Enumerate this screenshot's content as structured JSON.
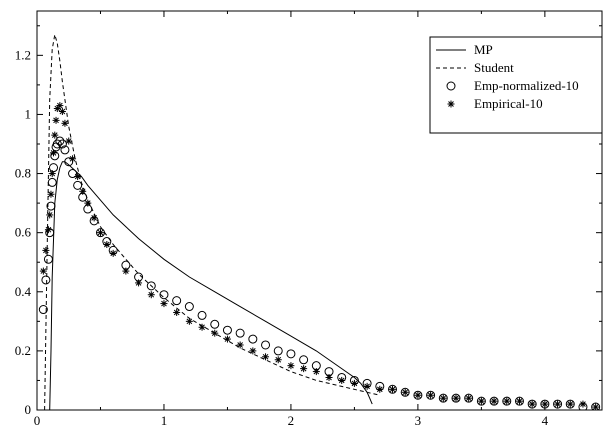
{
  "chart_data": {
    "type": "line",
    "title": "",
    "xlabel": "",
    "ylabel": "",
    "xlim": [
      0,
      4.45
    ],
    "ylim": [
      0,
      1.35
    ],
    "x_ticks": [
      0,
      1,
      2,
      3,
      4
    ],
    "y_ticks": [
      0,
      0.2,
      0.4,
      0.6,
      0.8,
      1,
      1.2
    ],
    "x_tick_labels": [
      "0",
      "1",
      "2",
      "3",
      "4"
    ],
    "y_tick_labels": [
      "0",
      "0.2",
      "0.4",
      "0.6",
      "0.8",
      "1",
      "1.2"
    ],
    "grid": false,
    "legend_position": "top-right",
    "series": [
      {
        "name": "MP",
        "style": "solid-line",
        "color": "#000000",
        "x": [
          0.1,
          0.11,
          0.12,
          0.14,
          0.16,
          0.18,
          0.2,
          0.22,
          0.25,
          0.3,
          0.35,
          0.4,
          0.5,
          0.6,
          0.8,
          1.0,
          1.2,
          1.4,
          1.6,
          1.8,
          2.0,
          2.2,
          2.4,
          2.5,
          2.55,
          2.6,
          2.62,
          2.64
        ],
        "y": [
          0.0,
          0.2,
          0.45,
          0.7,
          0.78,
          0.82,
          0.84,
          0.84,
          0.83,
          0.81,
          0.79,
          0.76,
          0.71,
          0.66,
          0.58,
          0.51,
          0.45,
          0.4,
          0.35,
          0.3,
          0.25,
          0.2,
          0.14,
          0.11,
          0.09,
          0.06,
          0.04,
          0.02
        ]
      },
      {
        "name": "Student",
        "style": "dashed-line",
        "color": "#000000",
        "x": [
          0.06,
          0.08,
          0.1,
          0.12,
          0.14,
          0.16,
          0.18,
          0.2,
          0.25,
          0.3,
          0.35,
          0.4,
          0.5,
          0.6,
          0.8,
          1.0,
          1.2,
          1.4,
          1.6,
          1.8,
          2.0,
          2.2,
          2.4,
          2.6,
          2.7
        ],
        "y": [
          0.0,
          0.55,
          1.05,
          1.22,
          1.27,
          1.24,
          1.18,
          1.11,
          0.96,
          0.85,
          0.77,
          0.71,
          0.62,
          0.56,
          0.46,
          0.38,
          0.31,
          0.26,
          0.21,
          0.17,
          0.13,
          0.1,
          0.08,
          0.06,
          0.05
        ]
      },
      {
        "name": "Emp-normalized-10",
        "style": "open-circles",
        "color": "#000000",
        "x": [
          0.05,
          0.07,
          0.09,
          0.1,
          0.11,
          0.12,
          0.13,
          0.14,
          0.15,
          0.16,
          0.18,
          0.2,
          0.22,
          0.25,
          0.28,
          0.32,
          0.36,
          0.4,
          0.45,
          0.5,
          0.55,
          0.6,
          0.7,
          0.8,
          0.9,
          1.0,
          1.1,
          1.2,
          1.3,
          1.4,
          1.5,
          1.6,
          1.7,
          1.8,
          1.9,
          2.0,
          2.1,
          2.2,
          2.3,
          2.4,
          2.5,
          2.6,
          2.7,
          2.8,
          2.9,
          3.0,
          3.1,
          3.2,
          3.3,
          3.4,
          3.5,
          3.6,
          3.7,
          3.8,
          3.9,
          4.0,
          4.1,
          4.2,
          4.3,
          4.4
        ],
        "y": [
          0.34,
          0.44,
          0.51,
          0.6,
          0.69,
          0.77,
          0.82,
          0.86,
          0.89,
          0.9,
          0.91,
          0.9,
          0.88,
          0.84,
          0.8,
          0.76,
          0.72,
          0.68,
          0.64,
          0.6,
          0.57,
          0.54,
          0.49,
          0.45,
          0.42,
          0.39,
          0.37,
          0.35,
          0.32,
          0.29,
          0.27,
          0.26,
          0.24,
          0.22,
          0.2,
          0.19,
          0.17,
          0.15,
          0.13,
          0.11,
          0.1,
          0.09,
          0.08,
          0.07,
          0.06,
          0.05,
          0.05,
          0.04,
          0.04,
          0.04,
          0.03,
          0.03,
          0.03,
          0.03,
          0.02,
          0.02,
          0.02,
          0.02,
          0.01,
          0.01
        ]
      },
      {
        "name": "Empirical-10",
        "style": "asterisks",
        "color": "#000000",
        "x": [
          0.05,
          0.07,
          0.09,
          0.1,
          0.11,
          0.12,
          0.13,
          0.14,
          0.15,
          0.16,
          0.18,
          0.2,
          0.22,
          0.25,
          0.28,
          0.32,
          0.36,
          0.4,
          0.45,
          0.5,
          0.55,
          0.6,
          0.7,
          0.8,
          0.9,
          1.0,
          1.1,
          1.2,
          1.3,
          1.4,
          1.5,
          1.6,
          1.7,
          1.8,
          1.9,
          2.0,
          2.1,
          2.2,
          2.3,
          2.4,
          2.5,
          2.6,
          2.7,
          2.8,
          2.9,
          3.0,
          3.1,
          3.2,
          3.3,
          3.4,
          3.5,
          3.6,
          3.7,
          3.8,
          3.9,
          4.0,
          4.1,
          4.2,
          4.3,
          4.4
        ],
        "y": [
          0.47,
          0.54,
          0.61,
          0.66,
          0.73,
          0.8,
          0.87,
          0.93,
          0.98,
          1.02,
          1.03,
          1.01,
          0.97,
          0.91,
          0.85,
          0.79,
          0.74,
          0.7,
          0.65,
          0.6,
          0.56,
          0.53,
          0.47,
          0.43,
          0.39,
          0.36,
          0.33,
          0.3,
          0.28,
          0.26,
          0.24,
          0.22,
          0.2,
          0.18,
          0.17,
          0.15,
          0.14,
          0.13,
          0.11,
          0.1,
          0.09,
          0.08,
          0.07,
          0.07,
          0.06,
          0.05,
          0.05,
          0.04,
          0.04,
          0.04,
          0.03,
          0.03,
          0.03,
          0.03,
          0.02,
          0.02,
          0.02,
          0.02,
          0.02,
          0.01
        ]
      }
    ]
  }
}
